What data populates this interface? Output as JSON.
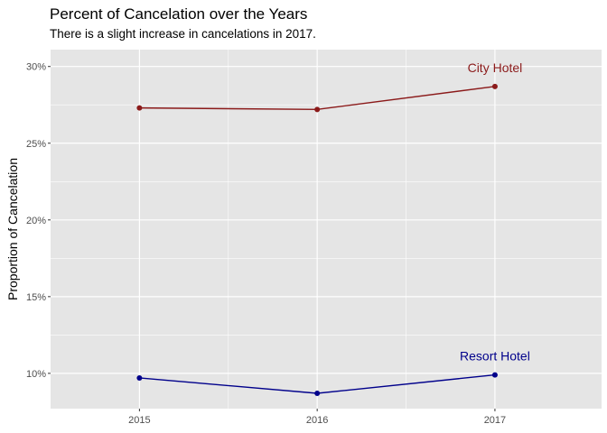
{
  "chart_data": {
    "type": "line",
    "title": "Percent of Cancelation over the Years",
    "subtitle": "There is a slight increase in cancelations in 2017.",
    "xlabel": "",
    "ylabel": "Proportion of Cancelation",
    "x": [
      2015,
      2016,
      2017
    ],
    "x_tick_labels": [
      "2015",
      "2016",
      "2017"
    ],
    "xlim": [
      2014.5,
      2017.6
    ],
    "y_ticks": [
      0.1,
      0.15,
      0.2,
      0.25,
      0.3
    ],
    "y_tick_labels": [
      "10%",
      "15%",
      "20%",
      "25%",
      "30%"
    ],
    "ylim": [
      0.077,
      0.311
    ],
    "grid": true,
    "legend": "none",
    "panel_background": "#e5e5e5",
    "grid_color": "#ffffff",
    "series": [
      {
        "name": "City Hotel",
        "color": "#8b1a1a",
        "values": [
          0.273,
          0.272,
          0.287
        ]
      },
      {
        "name": "Resort Hotel",
        "color": "#00008b",
        "values": [
          0.097,
          0.087,
          0.099
        ]
      }
    ]
  }
}
